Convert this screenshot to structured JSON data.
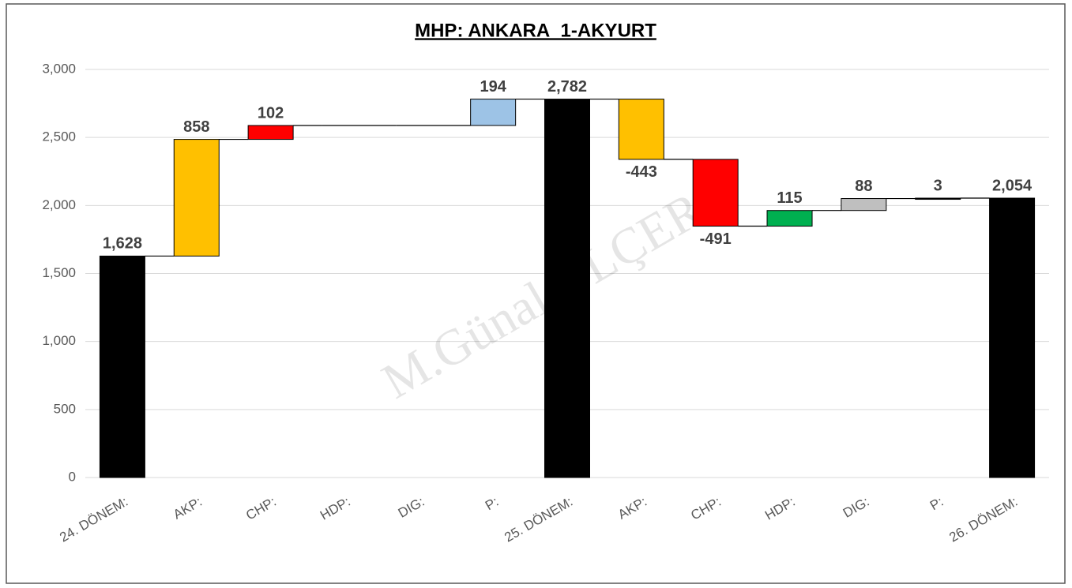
{
  "chart_data": {
    "type": "waterfall",
    "title": "MHP: ANKARA_1-AKYURT",
    "watermark": "M.Günal ÖLÇER",
    "categories": [
      "24. DÖNEM:",
      "AKP:",
      "CHP:",
      "HDP:",
      "DIG:",
      "P:",
      "25. DÖNEM:",
      "AKP:",
      "CHP:",
      "HDP:",
      "DIG:",
      "P:",
      "26. DÖNEM:"
    ],
    "values": [
      1628,
      858,
      102,
      null,
      null,
      194,
      2782,
      -443,
      -491,
      115,
      88,
      3,
      2054
    ],
    "value_labels": [
      "1,628",
      "858",
      "102",
      null,
      null,
      "194",
      "2,782",
      "-443",
      "-491",
      "115",
      "88",
      "3",
      "2,054"
    ],
    "is_total": [
      true,
      false,
      false,
      false,
      false,
      false,
      true,
      false,
      false,
      false,
      false,
      false,
      true
    ],
    "colors": [
      "#000000",
      "#ffc000",
      "#ff0000",
      "#00b050",
      "#bfbfbf",
      "#9dc3e6",
      "#000000",
      "#ffc000",
      "#ff0000",
      "#00b050",
      "#bfbfbf",
      "#000000",
      "#000000"
    ],
    "ylim": [
      0,
      3000
    ],
    "yticks": [
      0,
      500,
      {
        "value": 1000,
        "label": "1,000"
      },
      {
        "value": 1500,
        "label": "1,500"
      },
      {
        "value": 2000,
        "label": "2,000"
      },
      {
        "value": 2500,
        "label": "2,500"
      },
      {
        "value": 3000,
        "label": "3,000"
      }
    ],
    "grid": true
  }
}
